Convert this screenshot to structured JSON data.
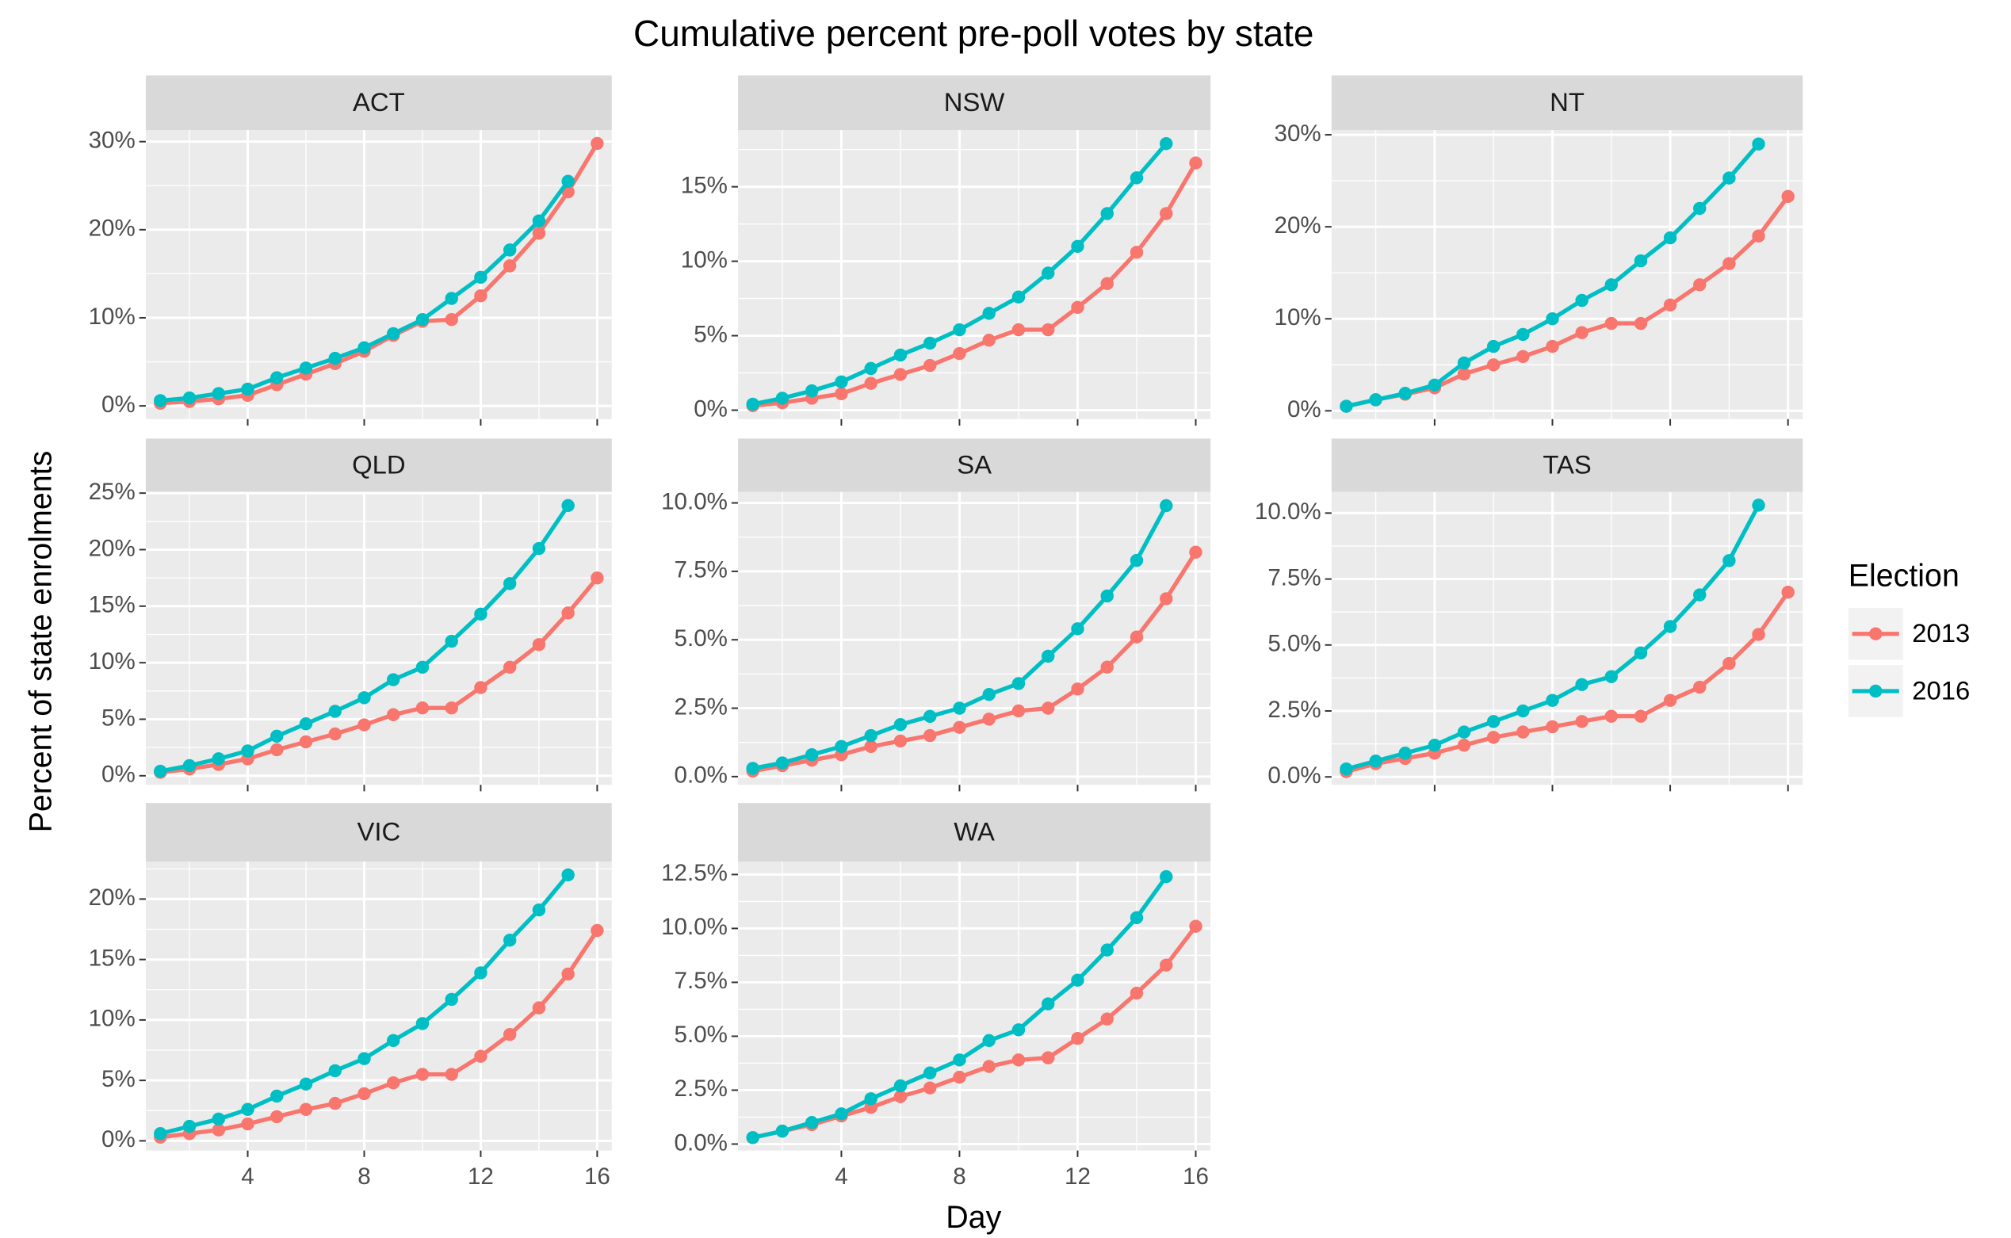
{
  "chart_data": {
    "type": "line",
    "title": "Cumulative percent pre-poll votes by state",
    "x_label": "Day",
    "y_label": "Percent of state enrolments",
    "legend_title": "Election",
    "x": [
      1,
      2,
      3,
      4,
      5,
      6,
      7,
      8,
      9,
      10,
      11,
      12,
      13,
      14,
      15,
      16
    ],
    "xlim": [
      0.5,
      16.5
    ],
    "xticks": [
      4,
      8,
      12,
      16
    ],
    "grid": true,
    "series": [
      {
        "name": "2013",
        "color": "#F8766D"
      },
      {
        "name": "2016",
        "color": "#00BFC4"
      }
    ],
    "facets": [
      {
        "title": "ACT",
        "ylim": [
          -1.5,
          31.3
        ],
        "yticks": [
          {
            "value": 0,
            "label": "0%"
          },
          {
            "value": 10,
            "label": "10%"
          },
          {
            "value": 20,
            "label": "20%"
          },
          {
            "value": 30,
            "label": "30%"
          }
        ],
        "values": [
          [
            0.3,
            0.5,
            0.8,
            1.2,
            2.4,
            3.6,
            4.8,
            6.2,
            8.0,
            9.6,
            9.8,
            12.5,
            15.9,
            19.6,
            24.3,
            29.8
          ],
          [
            0.6,
            0.9,
            1.4,
            1.9,
            3.2,
            4.3,
            5.4,
            6.6,
            8.2,
            9.8,
            12.2,
            14.6,
            17.7,
            21.0,
            25.5,
            null
          ]
        ]
      },
      {
        "title": "NSW",
        "ylim": [
          -0.6,
          18.8
        ],
        "yticks": [
          {
            "value": 0,
            "label": "0%"
          },
          {
            "value": 5,
            "label": "5%"
          },
          {
            "value": 10,
            "label": "10%"
          },
          {
            "value": 15,
            "label": "15%"
          }
        ],
        "values": [
          [
            0.3,
            0.5,
            0.8,
            1.1,
            1.8,
            2.4,
            3.0,
            3.8,
            4.7,
            5.4,
            5.4,
            6.9,
            8.5,
            10.6,
            13.2,
            16.6
          ],
          [
            0.4,
            0.8,
            1.3,
            1.9,
            2.8,
            3.7,
            4.5,
            5.4,
            6.5,
            7.6,
            9.2,
            11.0,
            13.2,
            15.6,
            17.9,
            null
          ]
        ]
      },
      {
        "title": "NT",
        "ylim": [
          -0.9,
          30.5
        ],
        "yticks": [
          {
            "value": 0,
            "label": "0%"
          },
          {
            "value": 10,
            "label": "10%"
          },
          {
            "value": 20,
            "label": "20%"
          },
          {
            "value": 30,
            "label": "30%"
          }
        ],
        "values": [
          [
            0.5,
            1.2,
            1.8,
            2.5,
            4.0,
            5.0,
            5.9,
            7.0,
            8.5,
            9.5,
            9.5,
            11.5,
            13.7,
            16.0,
            19.0,
            23.3
          ],
          [
            0.5,
            1.2,
            1.9,
            2.8,
            5.2,
            7.0,
            8.3,
            10.0,
            12.0,
            13.7,
            16.3,
            18.8,
            22.0,
            25.3,
            29.0,
            null
          ]
        ]
      },
      {
        "title": "QLD",
        "ylim": [
          -0.8,
          25.1
        ],
        "yticks": [
          {
            "value": 0,
            "label": "0%"
          },
          {
            "value": 5,
            "label": "5%"
          },
          {
            "value": 10,
            "label": "10%"
          },
          {
            "value": 15,
            "label": "15%"
          },
          {
            "value": 20,
            "label": "20%"
          },
          {
            "value": 25,
            "label": "25%"
          }
        ],
        "values": [
          [
            0.3,
            0.6,
            1.0,
            1.5,
            2.3,
            3.0,
            3.7,
            4.5,
            5.4,
            6.0,
            6.0,
            7.8,
            9.6,
            11.6,
            14.4,
            17.5
          ],
          [
            0.4,
            0.9,
            1.5,
            2.2,
            3.5,
            4.6,
            5.7,
            6.9,
            8.5,
            9.6,
            11.9,
            14.3,
            17.0,
            20.1,
            23.9,
            null
          ]
        ]
      },
      {
        "title": "SA",
        "ylim": [
          -0.3,
          10.4
        ],
        "yticks": [
          {
            "value": 0,
            "label": "0.0%"
          },
          {
            "value": 2.5,
            "label": "2.5%"
          },
          {
            "value": 5,
            "label": "5.0%"
          },
          {
            "value": 7.5,
            "label": "7.5%"
          },
          {
            "value": 10,
            "label": "10.0%"
          }
        ],
        "values": [
          [
            0.2,
            0.4,
            0.6,
            0.8,
            1.1,
            1.3,
            1.5,
            1.8,
            2.1,
            2.4,
            2.5,
            3.2,
            4.0,
            5.1,
            6.5,
            8.2
          ],
          [
            0.3,
            0.5,
            0.8,
            1.1,
            1.5,
            1.9,
            2.2,
            2.5,
            3.0,
            3.4,
            4.4,
            5.4,
            6.6,
            7.9,
            9.9,
            null
          ]
        ]
      },
      {
        "title": "TAS",
        "ylim": [
          -0.3,
          10.8
        ],
        "yticks": [
          {
            "value": 0,
            "label": "0.0%"
          },
          {
            "value": 2.5,
            "label": "2.5%"
          },
          {
            "value": 5,
            "label": "5.0%"
          },
          {
            "value": 7.5,
            "label": "7.5%"
          },
          {
            "value": 10,
            "label": "10.0%"
          }
        ],
        "values": [
          [
            0.2,
            0.5,
            0.7,
            0.9,
            1.2,
            1.5,
            1.7,
            1.9,
            2.1,
            2.3,
            2.3,
            2.9,
            3.4,
            4.3,
            5.4,
            7.0
          ],
          [
            0.3,
            0.6,
            0.9,
            1.2,
            1.7,
            2.1,
            2.5,
            2.9,
            3.5,
            3.8,
            4.7,
            5.7,
            6.9,
            8.2,
            10.3,
            null
          ]
        ]
      },
      {
        "title": "VIC",
        "ylim": [
          -0.8,
          23.1
        ],
        "yticks": [
          {
            "value": 0,
            "label": "0%"
          },
          {
            "value": 5,
            "label": "5%"
          },
          {
            "value": 10,
            "label": "10%"
          },
          {
            "value": 15,
            "label": "15%"
          },
          {
            "value": 20,
            "label": "20%"
          }
        ],
        "values": [
          [
            0.3,
            0.6,
            0.9,
            1.4,
            2.0,
            2.6,
            3.1,
            3.9,
            4.8,
            5.5,
            5.5,
            7.0,
            8.8,
            11.0,
            13.8,
            17.4
          ],
          [
            0.6,
            1.2,
            1.8,
            2.6,
            3.7,
            4.7,
            5.8,
            6.8,
            8.3,
            9.7,
            11.7,
            13.9,
            16.6,
            19.1,
            22.0,
            null
          ]
        ]
      },
      {
        "title": "WA",
        "ylim": [
          -0.3,
          13.1
        ],
        "yticks": [
          {
            "value": 0,
            "label": "0.0%"
          },
          {
            "value": 2.5,
            "label": "2.5%"
          },
          {
            "value": 5,
            "label": "5.0%"
          },
          {
            "value": 7.5,
            "label": "7.5%"
          },
          {
            "value": 10,
            "label": "10.0%"
          },
          {
            "value": 12.5,
            "label": "12.5%"
          }
        ],
        "values": [
          [
            0.3,
            0.6,
            0.9,
            1.3,
            1.7,
            2.2,
            2.6,
            3.1,
            3.6,
            3.9,
            4.0,
            4.9,
            5.8,
            7.0,
            8.3,
            10.1
          ],
          [
            0.3,
            0.6,
            1.0,
            1.4,
            2.1,
            2.7,
            3.3,
            3.9,
            4.8,
            5.3,
            6.5,
            7.6,
            9.0,
            10.5,
            12.4,
            null
          ]
        ]
      }
    ]
  }
}
